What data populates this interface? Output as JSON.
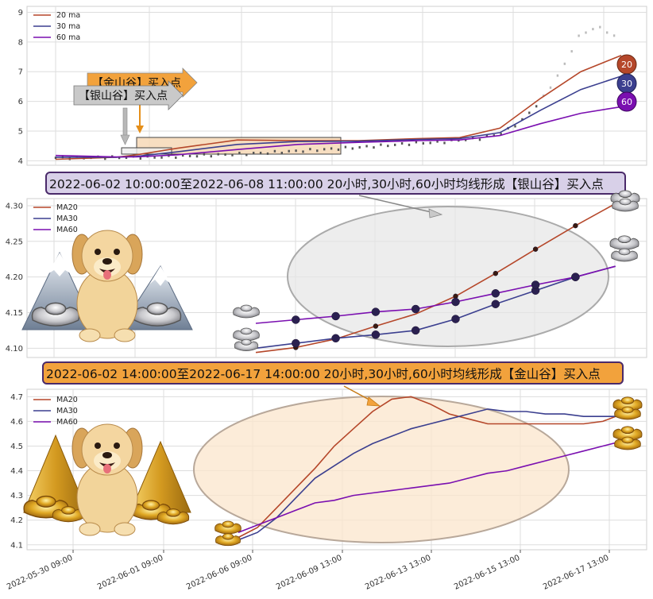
{
  "colors": {
    "ma20": "#b5472a",
    "ma30": "#3b3f8f",
    "ma60": "#7a0fb0",
    "silver_box": "#d8d0e8",
    "gold_box": "#f2a23c",
    "silver_ellipse": "#e6e6e6",
    "gold_ellipse": "#fbe6cc"
  },
  "icons": {
    "dog": "dog-illustration",
    "silver_ingot": "silver-ingot-icon",
    "gold_ingot": "gold-ingot-icon",
    "mountain": "mountain-icon",
    "pyramid": "gold-pyramid-icon"
  },
  "chart_data": [
    {
      "type": "line",
      "panel": "overview",
      "legend_placement": "top-left",
      "grid": true,
      "ylim": [
        3.85,
        9.2
      ],
      "yticks": [
        "4",
        "5",
        "6",
        "7",
        "8",
        "9"
      ],
      "legend": [
        "20 ma",
        "30 ma",
        "60 ma"
      ],
      "annotations": [
        "【金山谷】买入点",
        "【银山谷】买入点"
      ],
      "end_badges": [
        "20",
        "30",
        "60"
      ],
      "price_x": [
        0,
        5,
        10,
        15,
        18,
        19,
        20,
        21,
        22,
        23,
        24,
        25,
        26,
        27,
        28
      ],
      "price_y": [
        4.1,
        4.12,
        4.25,
        4.45,
        4.6,
        4.62,
        4.7,
        4.75,
        4.9,
        5.3,
        6.0,
        7.0,
        8.3,
        8.5,
        8.0
      ],
      "series": [
        {
          "name": "20 ma",
          "x": [
            0,
            3,
            4,
            6,
            9,
            12,
            15,
            18,
            20,
            22,
            24,
            26,
            28
          ],
          "values": [
            4.05,
            4.12,
            4.2,
            4.42,
            4.7,
            4.68,
            4.68,
            4.75,
            4.78,
            5.1,
            6.1,
            7.0,
            7.55
          ]
        },
        {
          "name": "30 ma",
          "x": [
            0,
            3,
            4,
            6,
            9,
            12,
            15,
            18,
            20,
            22,
            24,
            26,
            28
          ],
          "values": [
            4.12,
            4.12,
            4.15,
            4.3,
            4.55,
            4.65,
            4.66,
            4.72,
            4.75,
            4.95,
            5.7,
            6.4,
            6.85
          ]
        },
        {
          "name": "60 ma",
          "x": [
            0,
            3,
            4,
            6,
            9,
            12,
            15,
            18,
            20,
            22,
            24,
            26,
            28
          ],
          "values": [
            4.18,
            4.13,
            4.13,
            4.2,
            4.38,
            4.55,
            4.62,
            4.68,
            4.7,
            4.85,
            5.25,
            5.6,
            5.82
          ]
        }
      ]
    },
    {
      "type": "line",
      "panel": "silver_valley",
      "title": "2022-06-02 10:00:00至2022-06-08 11:00:00 20小时,30小时,60小时均线形成【银山谷】买入点",
      "legend_placement": "top-left",
      "grid": true,
      "ylim": [
        4.087,
        4.31
      ],
      "yticks": [
        "4.30",
        "4.25",
        "4.20",
        "4.15",
        "4.10"
      ],
      "legend": [
        "MA20",
        "MA30",
        "MA60"
      ],
      "x": [
        0,
        1,
        2,
        3,
        4,
        5,
        6,
        7,
        8,
        9
      ],
      "series": [
        {
          "name": "MA20",
          "values": [
            4.094,
            4.101,
            4.113,
            4.131,
            4.148,
            4.173,
            4.205,
            4.239,
            4.272,
            4.303
          ]
        },
        {
          "name": "MA30",
          "values": [
            4.1,
            4.107,
            4.114,
            4.119,
            4.125,
            4.141,
            4.162,
            4.181,
            4.2,
            4.215
          ]
        },
        {
          "name": "MA60",
          "values": [
            4.135,
            4.14,
            4.145,
            4.151,
            4.155,
            4.165,
            4.177,
            4.189,
            4.2,
            4.215
          ]
        }
      ],
      "dots_ma20": [
        1,
        2,
        3,
        5,
        6,
        7,
        8
      ],
      "dots_ma30": [
        1,
        2,
        3,
        4,
        5,
        6,
        7,
        8
      ],
      "dots_ma60": [
        1,
        2,
        3,
        4,
        5,
        6,
        7,
        8
      ]
    },
    {
      "type": "line",
      "panel": "gold_valley",
      "title": "2022-06-02 14:00:00至2022-06-17 14:00:00 20小时,30小时,60小时均线形成【金山谷】买入点",
      "legend_placement": "top-left",
      "grid": true,
      "ylim": [
        4.08,
        4.73
      ],
      "yticks": [
        "4.7",
        "4.6",
        "4.5",
        "4.4",
        "4.3",
        "4.2",
        "4.1"
      ],
      "legend": [
        "MA20",
        "MA30",
        "MA60"
      ],
      "x_tick_labels": [
        "2022-05-30 09:00",
        "2022-06-01 09:00",
        "2022-06-06 09:00",
        "2022-06-09 13:00",
        "2022-06-13 13:00",
        "2022-06-15 13:00",
        "2022-06-17 13:00"
      ],
      "x": [
        0,
        5,
        10,
        15,
        20,
        25,
        30,
        35,
        40,
        45,
        50,
        55,
        60,
        65,
        70,
        75,
        80,
        85,
        90,
        95,
        100
      ],
      "series": [
        {
          "name": "MA20",
          "values": [
            4.13,
            4.17,
            4.25,
            4.33,
            4.41,
            4.5,
            4.57,
            4.64,
            4.69,
            4.7,
            4.67,
            4.63,
            4.61,
            4.59,
            4.59,
            4.59,
            4.59,
            4.59,
            4.59,
            4.6,
            4.63
          ]
        },
        {
          "name": "MA30",
          "values": [
            4.12,
            4.15,
            4.21,
            4.29,
            4.37,
            4.42,
            4.47,
            4.51,
            4.54,
            4.57,
            4.59,
            4.61,
            4.63,
            4.65,
            4.64,
            4.64,
            4.63,
            4.63,
            4.62,
            4.62,
            4.62
          ]
        },
        {
          "name": "MA60",
          "values": [
            4.15,
            4.18,
            4.21,
            4.24,
            4.27,
            4.28,
            4.3,
            4.31,
            4.32,
            4.33,
            4.34,
            4.35,
            4.37,
            4.39,
            4.4,
            4.42,
            4.44,
            4.46,
            4.48,
            4.5,
            4.52
          ]
        }
      ]
    }
  ]
}
